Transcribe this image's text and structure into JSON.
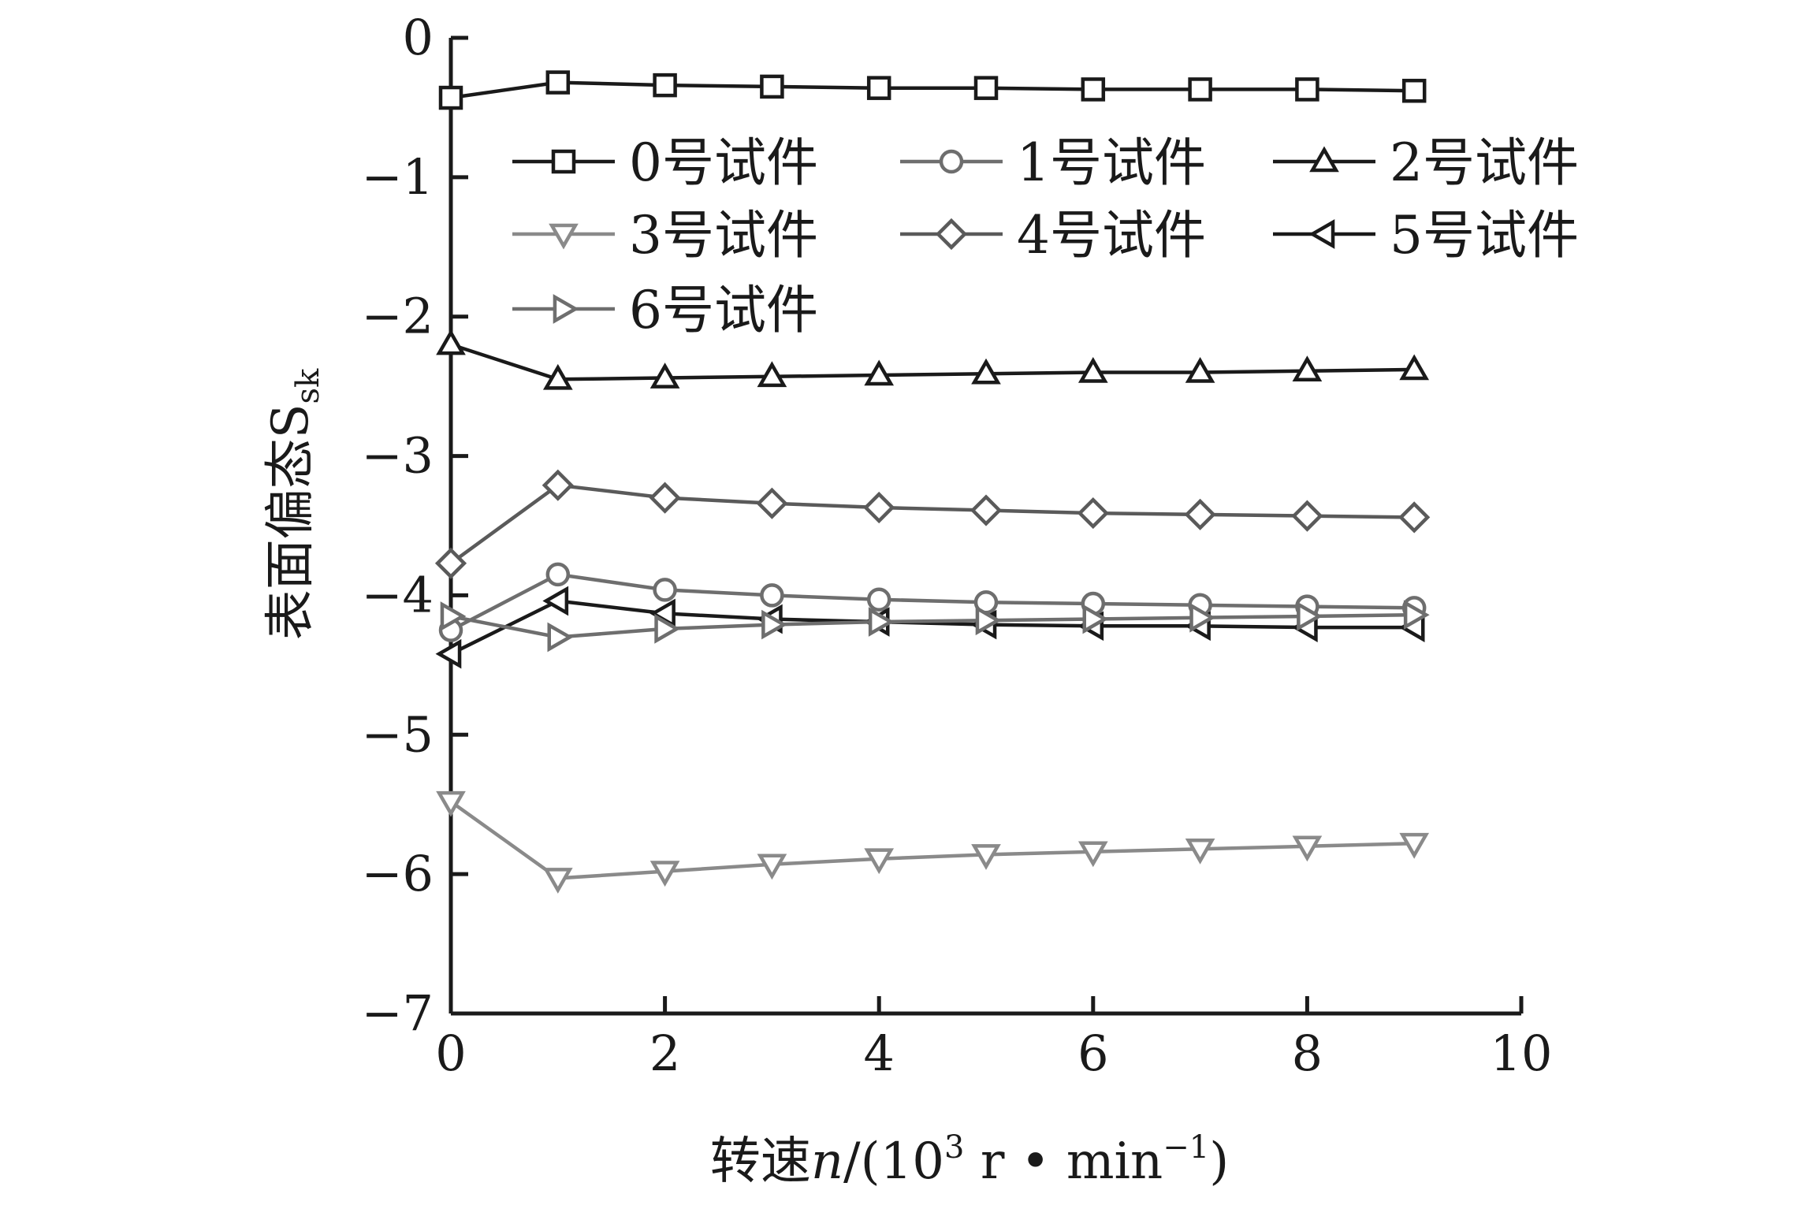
{
  "chart_data": {
    "type": "line",
    "xlabel": "转速n/(10³ r • min⁻¹)",
    "xlabel_parts": {
      "pre": "转速",
      "var": "n",
      "mid": "/(10",
      "sup1": "3",
      "mid2": " r • min",
      "sup2": "−1",
      "post": ")"
    },
    "ylabel": "表面偏态S",
    "ylabel_sub": "sk",
    "xlim": [
      0,
      10
    ],
    "ylim": [
      -7,
      0
    ],
    "xticks": [
      "0",
      "2",
      "4",
      "6",
      "8",
      "10"
    ],
    "yticks": [
      "0",
      "−1",
      "−2",
      "−3",
      "−4",
      "−5",
      "−6",
      "−7"
    ],
    "legend_position": "upper",
    "x": [
      0,
      1,
      2,
      3,
      4,
      5,
      6,
      7,
      8,
      9
    ],
    "series": [
      {
        "name": "0号试件",
        "marker": "square",
        "color": "#1a1a1a",
        "values": [
          -0.43,
          -0.32,
          -0.34,
          -0.35,
          -0.36,
          -0.36,
          -0.37,
          -0.37,
          -0.37,
          -0.38
        ]
      },
      {
        "name": "1号试件",
        "marker": "circle",
        "color": "#6e6e6e",
        "values": [
          -4.25,
          -3.85,
          -3.96,
          -4.0,
          -4.03,
          -4.05,
          -4.06,
          -4.07,
          -4.08,
          -4.09
        ]
      },
      {
        "name": "2号试件",
        "marker": "triangle-up",
        "color": "#1a1a1a",
        "values": [
          -2.2,
          -2.45,
          -2.44,
          -2.43,
          -2.42,
          -2.41,
          -2.4,
          -2.4,
          -2.39,
          -2.38
        ]
      },
      {
        "name": "3号试件",
        "marker": "triangle-down",
        "color": "#8a8a8a",
        "values": [
          -5.48,
          -6.03,
          -5.98,
          -5.93,
          -5.89,
          -5.86,
          -5.84,
          -5.82,
          -5.8,
          -5.78
        ]
      },
      {
        "name": "4号试件",
        "marker": "diamond",
        "color": "#5a5a5a",
        "values": [
          -3.77,
          -3.21,
          -3.3,
          -3.34,
          -3.37,
          -3.39,
          -3.41,
          -3.42,
          -3.43,
          -3.44
        ]
      },
      {
        "name": "5号试件",
        "marker": "triangle-left",
        "color": "#1a1a1a",
        "values": [
          -4.42,
          -4.04,
          -4.13,
          -4.17,
          -4.19,
          -4.21,
          -4.22,
          -4.22,
          -4.23,
          -4.23
        ]
      },
      {
        "name": "6号试件",
        "marker": "triangle-right",
        "color": "#6e6e6e",
        "values": [
          -4.15,
          -4.3,
          -4.24,
          -4.21,
          -4.19,
          -4.18,
          -4.17,
          -4.16,
          -4.15,
          -4.14
        ]
      }
    ]
  }
}
